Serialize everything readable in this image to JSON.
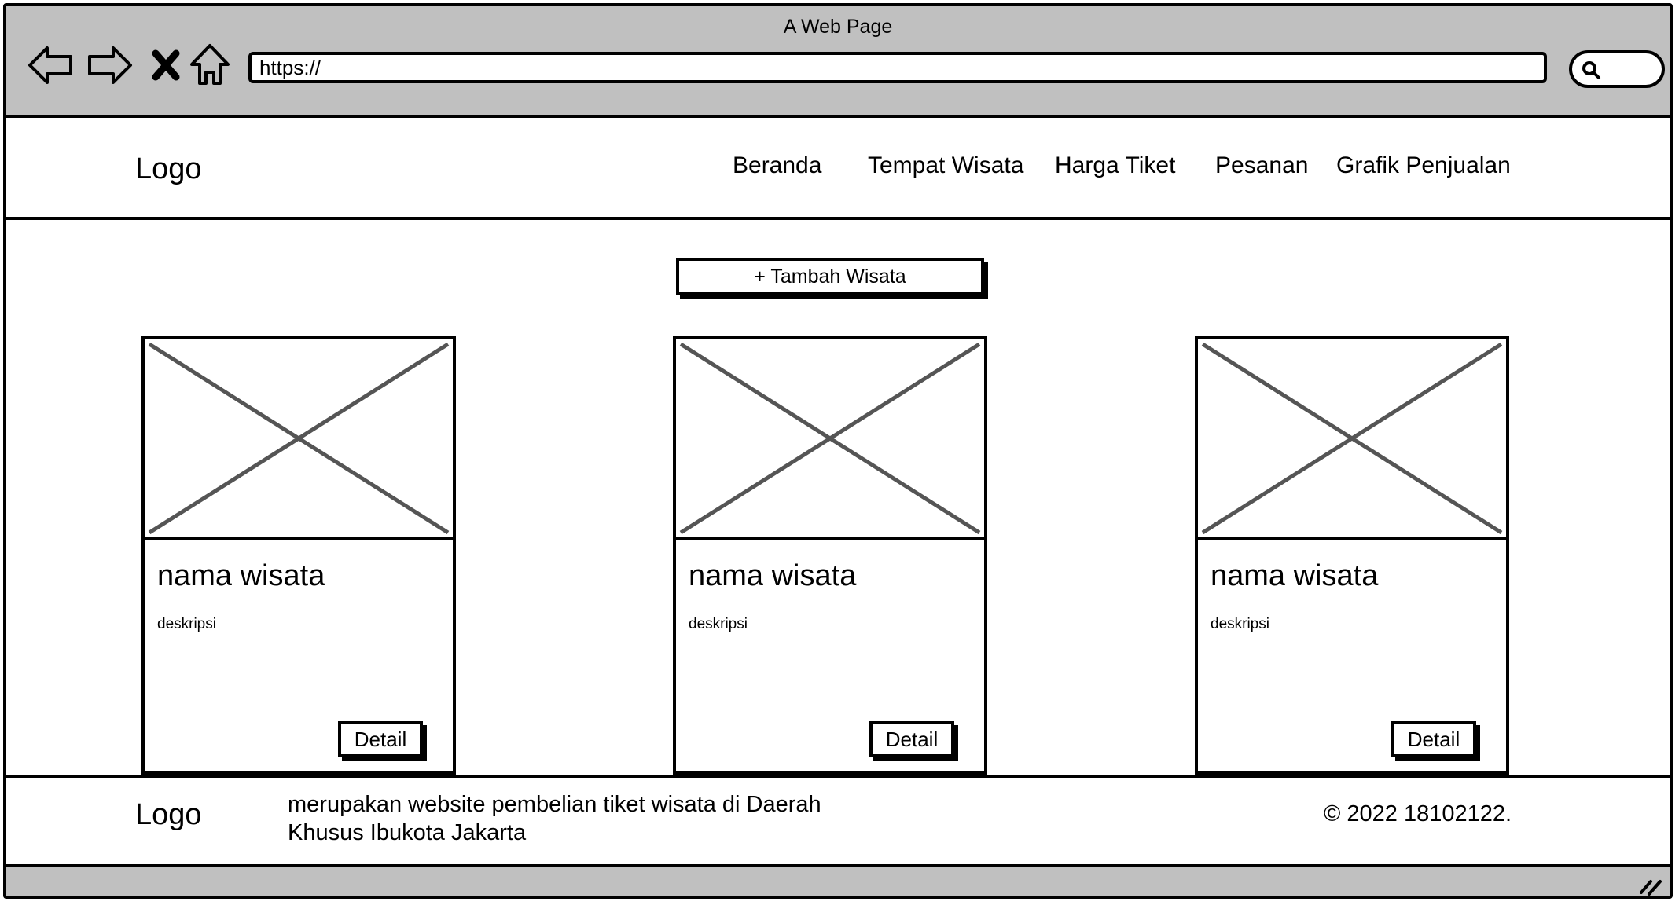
{
  "browser": {
    "window_title": "A Web Page",
    "url": "https://",
    "buttons": {
      "back": "back-arrow-icon",
      "forward": "forward-arrow-icon",
      "stop": "close-x-icon",
      "home": "home-icon",
      "search": "search-icon"
    }
  },
  "header": {
    "logo": "Logo",
    "nav": [
      "Beranda",
      "Tempat Wisata",
      "Harga Tiket",
      "Pesanan",
      "Grafik Penjualan"
    ]
  },
  "main": {
    "add_button": "+ Tambah Wisata",
    "cards": [
      {
        "title": "nama wisata",
        "description": "deskripsi",
        "button": "Detail",
        "image": "image-placeholder"
      },
      {
        "title": "nama wisata",
        "description": "deskripsi",
        "button": "Detail",
        "image": "image-placeholder"
      },
      {
        "title": "nama wisata",
        "description": "deskripsi",
        "button": "Detail",
        "image": "image-placeholder"
      }
    ]
  },
  "footer": {
    "logo": "Logo",
    "description": "merupakan website pembelian tiket wisata di Daerah Khusus Ibukota Jakarta",
    "copyright": "© 2022 18102122."
  },
  "colors": {
    "chrome": "#c0c0c0",
    "border": "#000000",
    "placeholder_cross": "#555555"
  }
}
